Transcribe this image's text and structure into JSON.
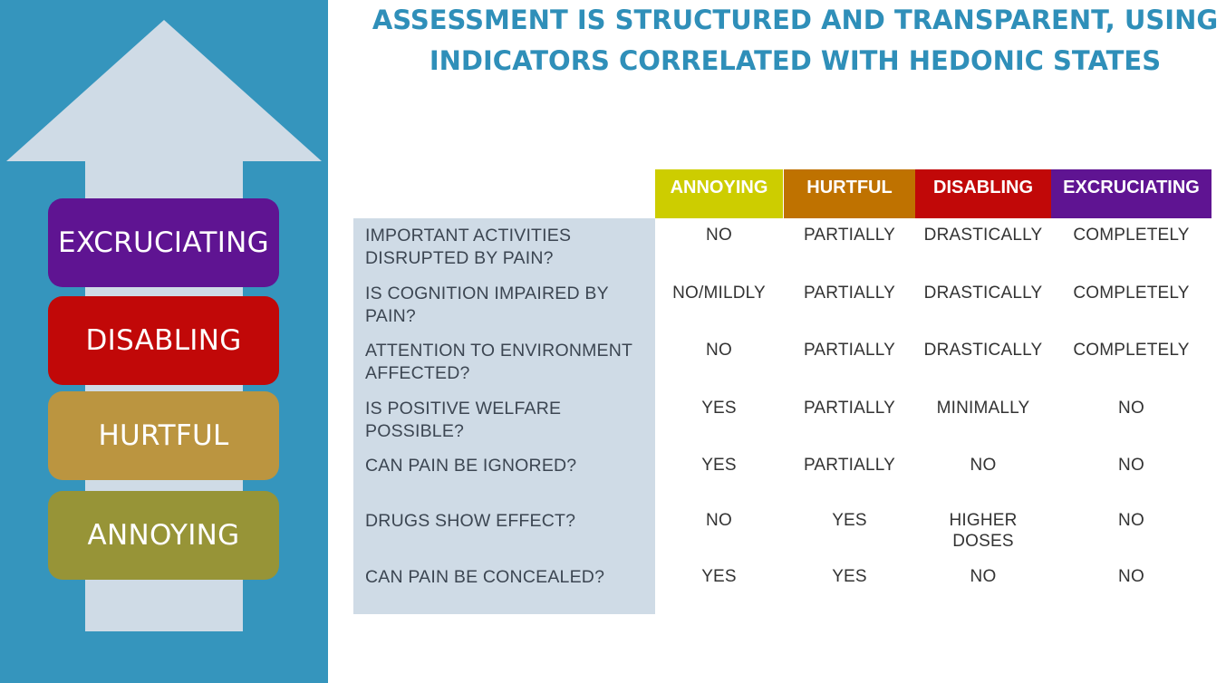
{
  "title": "ASSESSMENT IS STRUCTURED AND TRANSPARENT, USING INDICATORS CORRELATED WITH HEDONIC STATES",
  "scale": [
    {
      "label": "EXCRUCIATING",
      "color": "#5f1492"
    },
    {
      "label": "DISABLING",
      "color": "#c10808"
    },
    {
      "label": "HURTFUL",
      "color": "#bb9540"
    },
    {
      "label": "ANNOYING",
      "color": "#979437"
    }
  ],
  "table": {
    "headers": [
      {
        "label": "ANNOYING",
        "color": "#cdcd00"
      },
      {
        "label": "HURTFUL",
        "color": "#bf7200"
      },
      {
        "label": "DISABLING",
        "color": "#c10808"
      },
      {
        "label": "EXCRUCIATING",
        "color": "#5f1492"
      }
    ],
    "rows": [
      {
        "question": "IMPORTANT ACTIVITIES DISRUPTED BY PAIN?",
        "values": [
          "NO",
          "PARTIALLY",
          "DRASTICALLY",
          "COMPLETELY"
        ]
      },
      {
        "question": "IS COGNITION IMPAIRED BY PAIN?",
        "values": [
          "NO/MILDLY",
          "PARTIALLY",
          "DRASTICALLY",
          "COMPLETELY"
        ]
      },
      {
        "question": "ATTENTION TO ENVIRONMENT AFFECTED?",
        "values": [
          "NO",
          "PARTIALLY",
          "DRASTICALLY",
          "COMPLETELY"
        ]
      },
      {
        "question": "IS POSITIVE WELFARE POSSIBLE?",
        "values": [
          "YES",
          "PARTIALLY",
          "MINIMALLY",
          "NO"
        ]
      },
      {
        "question": "CAN PAIN BE IGNORED?",
        "values": [
          "YES",
          "PARTIALLY",
          "NO",
          "NO"
        ]
      },
      {
        "question": "DRUGS SHOW EFFECT?",
        "values": [
          "NO",
          "YES",
          "HIGHER DOSES",
          "NO"
        ]
      },
      {
        "question": "CAN PAIN BE CONCEALED?",
        "values": [
          "YES",
          "YES",
          "NO",
          "NO"
        ]
      }
    ]
  }
}
